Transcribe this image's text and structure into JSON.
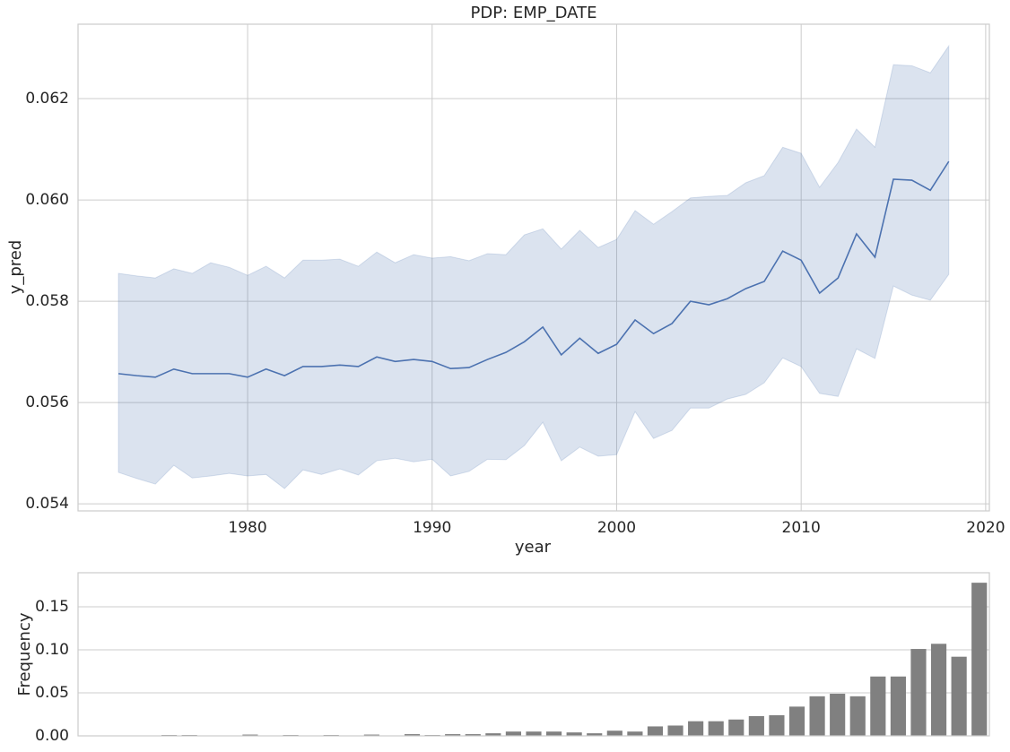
{
  "chart_data": [
    {
      "type": "line",
      "title": "PDP: EMP_DATE",
      "xlabel": "year",
      "ylabel": "y_pred",
      "color": "#4c72b0",
      "grid": true,
      "x": [
        1973,
        1974,
        1975,
        1976,
        1977,
        1978,
        1979,
        1980,
        1981,
        1982,
        1983,
        1984,
        1985,
        1986,
        1987,
        1988,
        1989,
        1990,
        1991,
        1992,
        1993,
        1994,
        1995,
        1996,
        1997,
        1998,
        1999,
        2000,
        2001,
        2002,
        2003,
        2004,
        2005,
        2006,
        2007,
        2008,
        2009,
        2010,
        2011,
        2012,
        2013,
        2014,
        2015,
        2016,
        2017,
        2018
      ],
      "values": [
        0.05657,
        0.05653,
        0.0565,
        0.05666,
        0.05657,
        0.05657,
        0.05657,
        0.0565,
        0.05666,
        0.05653,
        0.05671,
        0.05671,
        0.05674,
        0.05671,
        0.0569,
        0.05681,
        0.05685,
        0.05681,
        0.05667,
        0.05669,
        0.05685,
        0.05699,
        0.0572,
        0.05749,
        0.05694,
        0.05727,
        0.05697,
        0.05715,
        0.05763,
        0.05736,
        0.05756,
        0.058,
        0.05793,
        0.05805,
        0.05825,
        0.05839,
        0.05899,
        0.05881,
        0.05816,
        0.05846,
        0.05933,
        0.05887,
        0.06041,
        0.06039,
        0.06019,
        0.06076
      ],
      "upper": [
        0.05855,
        0.0585,
        0.05846,
        0.05864,
        0.05855,
        0.05876,
        0.05867,
        0.05851,
        0.05869,
        0.05846,
        0.05881,
        0.05881,
        0.05883,
        0.05869,
        0.05897,
        0.05876,
        0.05892,
        0.05885,
        0.05888,
        0.0588,
        0.05894,
        0.05892,
        0.05931,
        0.05943,
        0.05903,
        0.0594,
        0.05906,
        0.05922,
        0.05979,
        0.05952,
        0.05977,
        0.06004,
        0.06007,
        0.06009,
        0.06034,
        0.06048,
        0.06104,
        0.06092,
        0.06025,
        0.06074,
        0.0614,
        0.06104,
        0.06267,
        0.06265,
        0.06251,
        0.06304
      ],
      "lower": [
        0.05462,
        0.0545,
        0.05439,
        0.05476,
        0.05451,
        0.05455,
        0.0546,
        0.05455,
        0.05458,
        0.0543,
        0.05467,
        0.05458,
        0.05469,
        0.05457,
        0.05485,
        0.0549,
        0.05483,
        0.05488,
        0.05455,
        0.05464,
        0.05488,
        0.05487,
        0.05515,
        0.05561,
        0.05485,
        0.05512,
        0.05494,
        0.05497,
        0.05582,
        0.05529,
        0.05545,
        0.05589,
        0.05589,
        0.05607,
        0.05616,
        0.05639,
        0.05688,
        0.05671,
        0.05618,
        0.05612,
        0.05706,
        0.05687,
        0.0583,
        0.05812,
        0.05802,
        0.05853
      ],
      "xlim": [
        1970.81,
        2020.2
      ],
      "xticks": [
        1980,
        1990,
        2000,
        2010,
        2020
      ],
      "ylim": [
        0.05386,
        0.06347
      ],
      "yticks": [
        0.054,
        0.056,
        0.058,
        {
          "value": 0.06,
          "label": "0.060"
        },
        0.062
      ]
    },
    {
      "type": "bar",
      "ylabel": "Frequency",
      "color": "#808080",
      "grid": true,
      "categories": [
        null,
        null,
        null,
        null,
        null,
        null,
        null,
        null,
        null,
        null,
        null,
        null,
        null,
        null,
        null,
        null,
        null,
        null,
        null,
        null,
        null,
        null,
        null,
        null,
        null,
        null,
        null,
        null,
        null,
        null,
        null,
        null,
        null,
        null,
        null,
        null,
        null,
        null,
        null,
        null,
        null,
        null,
        null,
        null,
        null
      ],
      "values": [
        0,
        0,
        0,
        0,
        0.001,
        0.001,
        0,
        0,
        0.0015,
        0,
        0.001,
        0,
        0.001,
        0,
        0.0015,
        0,
        0.002,
        0.001,
        0.002,
        0.002,
        0.003,
        0.005,
        0.005,
        0.005,
        0.004,
        0.003,
        0.006,
        0.005,
        0.011,
        0.012,
        0.017,
        0.017,
        0.019,
        0.023,
        0.024,
        0.034,
        0.046,
        0.049,
        0.046,
        0.069,
        0.069,
        0.101,
        0.107,
        0.092,
        0.178
      ],
      "ylim": [
        0,
        0.1896
      ],
      "yticks": [
        {
          "value": 0,
          "label": "0.00"
        },
        0.05,
        {
          "value": 0.1,
          "label": "0.10"
        },
        0.15
      ]
    }
  ]
}
